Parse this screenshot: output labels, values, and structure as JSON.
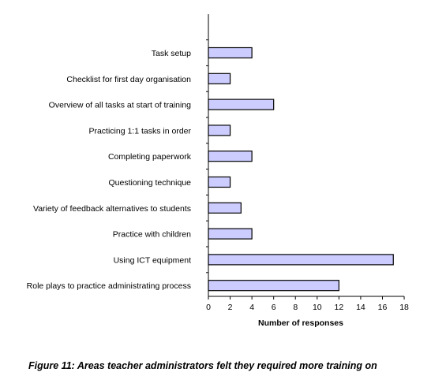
{
  "figure": {
    "caption": "Figure 11: Areas teacher administrators felt they required more training on"
  },
  "chart_data": {
    "type": "bar",
    "orientation": "horizontal",
    "categories": [
      "Task setup",
      "Checklist for first day organisation",
      "Overview of all tasks at start of training",
      "Practicing 1:1 tasks in order",
      "Completing paperwork",
      "Questioning technique",
      "Variety of feedback alternatives to students",
      "Practice with children",
      "Using ICT equipment",
      "Role plays to practice administrating process"
    ],
    "values": [
      4,
      2,
      6,
      2,
      4,
      2,
      3,
      4,
      17,
      12
    ],
    "xlabel": "Number of responses",
    "ylabel": "",
    "xlim": [
      0,
      18
    ],
    "xticks": [
      "0",
      "2",
      "4",
      "6",
      "8",
      "10",
      "12",
      "14",
      "16",
      "18"
    ],
    "grid": false,
    "legend": "none",
    "colors": {
      "bar_fill": "#ccccff",
      "bar_stroke": "#000000",
      "axis": "#000000"
    }
  }
}
